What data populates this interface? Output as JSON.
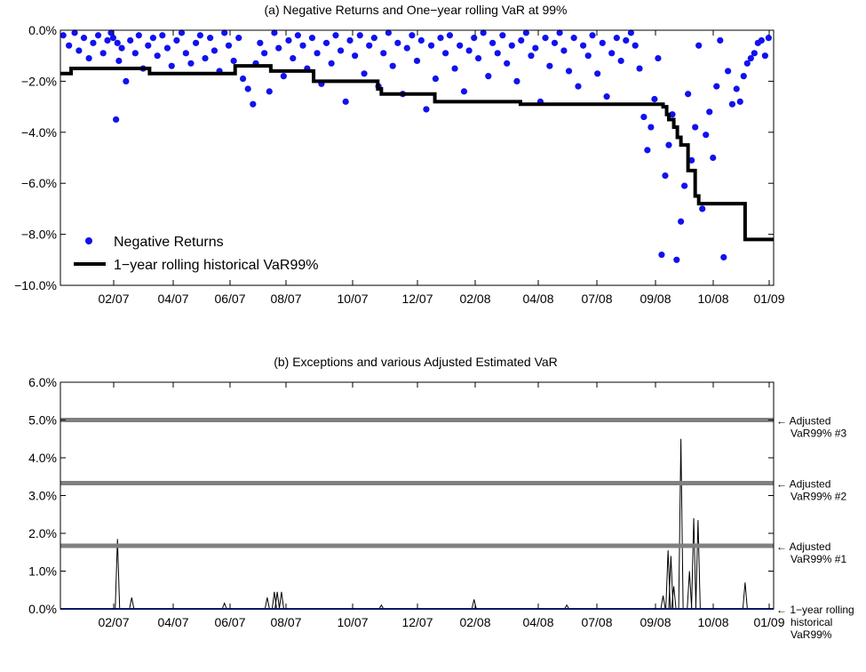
{
  "chart_data": [
    {
      "type": "scatter",
      "title": "(a) Negative Returns and One−year rolling VaR at 99%",
      "xlabel": "",
      "ylabel": "",
      "x_tick_labels": [
        "02/07",
        "04/07",
        "06/07",
        "08/07",
        "10/07",
        "12/07",
        "02/08",
        "04/08",
        "07/08",
        "09/08",
        "10/08",
        "01/09"
      ],
      "y_tick_labels": [
        "0.0%",
        "−2.0%",
        "−4.0%",
        "−6.0%",
        "−8.0%",
        "−10.0%"
      ],
      "ylim": [
        -10.0,
        0.0
      ],
      "xlim": [
        0,
        100
      ],
      "grid": false,
      "legend_position": "bottom-left",
      "series": [
        {
          "name": "Negative Returns",
          "kind": "points",
          "color": "#1111ee",
          "x": [
            0.4,
            1.2,
            2.0,
            2.6,
            3.3,
            4.0,
            4.6,
            5.3,
            6.0,
            6.6,
            7.1,
            7.4,
            7.8,
            8.0,
            8.2,
            8.6,
            9.2,
            9.8,
            10.5,
            11.0,
            11.6,
            12.3,
            13.0,
            13.6,
            14.3,
            15.0,
            15.6,
            16.3,
            17.0,
            17.6,
            18.3,
            19.0,
            19.6,
            20.3,
            21.0,
            21.6,
            22.3,
            23.0,
            23.6,
            24.3,
            25.0,
            25.6,
            26.3,
            27.0,
            27.4,
            28.0,
            28.6,
            29.3,
            30.0,
            30.6,
            31.3,
            32.0,
            32.6,
            33.3,
            34.0,
            34.6,
            35.3,
            36.0,
            36.6,
            37.3,
            38.0,
            38.6,
            39.3,
            40.0,
            40.6,
            41.3,
            42.0,
            42.6,
            43.3,
            44.0,
            44.6,
            45.3,
            46.0,
            46.6,
            47.3,
            48.0,
            48.6,
            49.3,
            50.0,
            50.6,
            51.3,
            52.0,
            52.6,
            53.3,
            54.0,
            54.6,
            55.3,
            56.0,
            56.6,
            57.3,
            58.0,
            58.6,
            59.3,
            60.0,
            60.6,
            61.3,
            62.0,
            62.6,
            63.3,
            64.0,
            64.6,
            65.3,
            66.0,
            66.6,
            67.3,
            68.0,
            68.6,
            69.3,
            70.0,
            70.6,
            71.3,
            72.0,
            72.6,
            73.3,
            74.0,
            74.6,
            75.3,
            76.0,
            76.6,
            77.3,
            78.0,
            78.6,
            79.3,
            80.0,
            80.6,
            81.2,
            81.8,
            82.3,
            82.8,
            83.3,
            83.8,
            84.3,
            84.8,
            85.3,
            85.8,
            86.4,
            87.0,
            87.5,
            88.0,
            88.5,
            89.0,
            89.5,
            90.0,
            90.5,
            91.0,
            91.5,
            92.0,
            92.5,
            93.0,
            93.6,
            94.2,
            94.8,
            95.3,
            95.8,
            96.3,
            96.8,
            97.3,
            97.8,
            98.3,
            98.8,
            99.3
          ],
          "y": [
            -0.2,
            -0.6,
            -0.1,
            -0.8,
            -0.3,
            -1.1,
            -0.5,
            -0.2,
            -0.9,
            -0.4,
            -0.1,
            -0.3,
            -3.5,
            -0.5,
            -1.2,
            -0.7,
            -2.0,
            -0.4,
            -0.9,
            -0.2,
            -1.5,
            -0.6,
            -0.3,
            -1.0,
            -0.2,
            -0.7,
            -1.4,
            -0.4,
            -0.1,
            -0.9,
            -1.3,
            -0.5,
            -0.2,
            -1.1,
            -0.3,
            -0.8,
            -1.6,
            -0.1,
            -0.6,
            -1.2,
            -0.3,
            -1.9,
            -2.3,
            -2.9,
            -1.3,
            -0.5,
            -0.9,
            -2.4,
            -0.1,
            -0.7,
            -1.8,
            -0.4,
            -1.1,
            -0.2,
            -0.6,
            -1.5,
            -0.3,
            -0.9,
            -2.1,
            -0.5,
            -1.3,
            -0.2,
            -0.8,
            -2.8,
            -0.4,
            -1.0,
            -0.2,
            -1.7,
            -0.6,
            -0.3,
            -2.2,
            -0.9,
            -0.1,
            -1.4,
            -0.5,
            -2.5,
            -0.7,
            -0.2,
            -1.2,
            -0.4,
            -3.1,
            -0.6,
            -1.9,
            -0.3,
            -0.9,
            -0.2,
            -1.5,
            -0.6,
            -2.4,
            -0.8,
            -0.3,
            -1.1,
            -0.1,
            -1.8,
            -0.5,
            -0.9,
            -0.2,
            -1.3,
            -0.6,
            -2.0,
            -0.4,
            -0.1,
            -1.0,
            -0.7,
            -2.8,
            -0.3,
            -1.4,
            -0.5,
            -0.1,
            -0.8,
            -1.6,
            -0.3,
            -2.2,
            -0.6,
            -1.0,
            -0.2,
            -1.7,
            -0.5,
            -2.6,
            -0.9,
            -0.3,
            -1.2,
            -0.4,
            -0.1,
            -0.6,
            -1.5,
            -3.4,
            -4.7,
            -3.8,
            -2.7,
            -1.1,
            -8.8,
            -5.7,
            -4.5,
            -3.3,
            -9.0,
            -7.5,
            -6.1,
            -2.5,
            -5.1,
            -3.8,
            -0.6,
            -7.0,
            -4.1,
            -3.2,
            -5.0,
            -2.2,
            -0.4,
            -8.9,
            -1.6,
            -2.9,
            -2.3,
            -2.8,
            -1.8,
            -1.3,
            -1.1,
            -0.9,
            -0.5,
            -0.4,
            -1.0,
            -0.3
          ],
          "y_unit": "%"
        },
        {
          "name": "1−year rolling historical VaR99%",
          "kind": "step",
          "color": "#000000",
          "x": [
            0,
            1,
            1.5,
            12,
            12.5,
            24,
            24.5,
            29,
            29.5,
            35,
            35.5,
            44.5,
            45,
            52,
            52.5,
            56,
            56.5,
            64,
            64.5,
            79,
            80,
            84,
            84.5,
            85,
            85.3,
            86,
            86.5,
            87,
            88,
            89,
            89.5,
            90,
            91,
            95,
            96,
            100
          ],
          "y": [
            -1.7,
            -1.7,
            -1.5,
            -1.5,
            -1.7,
            -1.7,
            -1.4,
            -1.4,
            -1.6,
            -1.6,
            -2.0,
            -2.3,
            -2.5,
            -2.5,
            -2.8,
            -2.8,
            -2.8,
            -2.8,
            -2.9,
            -2.9,
            -2.9,
            -2.9,
            -3.0,
            -3.3,
            -3.5,
            -3.8,
            -4.2,
            -4.5,
            -5.5,
            -6.5,
            -6.8,
            -6.8,
            -6.8,
            -6.8,
            -8.2,
            -8.2
          ]
        }
      ]
    },
    {
      "type": "line",
      "title": "(b) Exceptions and various Adjusted Estimated VaR",
      "xlabel": "",
      "ylabel": "",
      "x_tick_labels": [
        "02/07",
        "04/07",
        "06/07",
        "08/07",
        "10/07",
        "12/07",
        "02/08",
        "04/08",
        "07/08",
        "09/08",
        "10/08",
        "01/09"
      ],
      "y_tick_labels": [
        "0.0%",
        "1.0%",
        "2.0%",
        "3.0%",
        "4.0%",
        "5.0%",
        "6.0%"
      ],
      "ylim": [
        0.0,
        6.0
      ],
      "xlim": [
        0,
        100
      ],
      "grid": false,
      "series": [
        {
          "name": "Exceptions",
          "kind": "spikes",
          "color": "#000000",
          "x": [
            8.0,
            10.0,
            23.0,
            29.0,
            30.0,
            30.4,
            31.0,
            45.0,
            58.0,
            71.0,
            84.5,
            85.2,
            85.6,
            86.0,
            87.0,
            88.2,
            88.8,
            89.4,
            96.0
          ],
          "y": [
            1.85,
            0.3,
            0.15,
            0.3,
            0.45,
            0.45,
            0.45,
            0.1,
            0.25,
            0.1,
            0.35,
            1.55,
            1.4,
            0.6,
            4.5,
            1.0,
            2.4,
            2.35,
            0.7
          ]
        },
        {
          "name": "1−year rolling historical VaR99%",
          "kind": "hline",
          "color": "#1133cc",
          "value": 0.0
        },
        {
          "name": "Adjusted VaR99% #1",
          "kind": "hline",
          "color": "#808080",
          "value": 1.67
        },
        {
          "name": "Adjusted VaR99% #2",
          "kind": "hline",
          "color": "#808080",
          "value": 3.33
        },
        {
          "name": "Adjusted VaR99% #3",
          "kind": "hline",
          "color": "#808080",
          "value": 5.0
        }
      ],
      "annotations": [
        {
          "target": 5.0,
          "lines": [
            "← Adjusted",
            "VaR99% #3"
          ]
        },
        {
          "target": 3.33,
          "lines": [
            "← Adjusted",
            "VaR99% #2"
          ]
        },
        {
          "target": 1.67,
          "lines": [
            "← Adjusted",
            "VaR99% #1"
          ]
        },
        {
          "target": 0.0,
          "lines": [
            "← 1−year rolling",
            "historical",
            "VaR99%"
          ]
        }
      ]
    }
  ]
}
